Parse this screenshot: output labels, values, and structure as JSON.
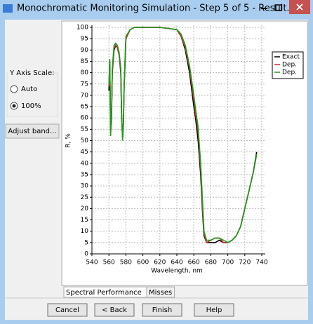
{
  "window": {
    "title": "Monochromatic Monitoring Simulation - Step 5 of 5 - Result..."
  },
  "left_panel": {
    "group_title": "Y Axis Scale:",
    "options": [
      "Auto",
      "100%"
    ],
    "selected": 1,
    "adjust_button": "Adjust band..."
  },
  "chart_data": {
    "type": "line",
    "xlabel": "Wavelength, nm",
    "ylabel": "R, %",
    "x": [
      560,
      561,
      562,
      563,
      564,
      566,
      568,
      570,
      572,
      574,
      575,
      576,
      577,
      578,
      580,
      585,
      590,
      600,
      620,
      640,
      645,
      650,
      655,
      660,
      662,
      665,
      668,
      670,
      672,
      675,
      680,
      685,
      690,
      695,
      700,
      705,
      710,
      715,
      720,
      725,
      730,
      734
    ],
    "series": [
      {
        "name": "Exact",
        "color": "#000000",
        "values": [
          72,
          85,
          55,
          58,
          80,
          90,
          92,
          91,
          88,
          80,
          60,
          52,
          58,
          75,
          95,
          99,
          100,
          100,
          100,
          99,
          96,
          90,
          80,
          65,
          60,
          50,
          35,
          20,
          8,
          5,
          5,
          5,
          6,
          5,
          5,
          6,
          8,
          12,
          20,
          28,
          36,
          45
        ]
      },
      {
        "name": "Dep.",
        "color": "#d62728",
        "values": [
          74,
          85,
          54,
          60,
          81,
          91,
          92,
          91,
          88,
          81,
          61,
          51,
          57,
          75,
          95,
          99,
          100,
          100,
          100,
          99,
          96,
          91,
          82,
          68,
          62,
          54,
          38,
          22,
          9,
          5,
          6,
          7,
          7,
          5,
          5,
          6,
          8,
          12,
          20,
          28,
          36,
          44
        ]
      },
      {
        "name": "Dep.",
        "color": "#1f9a1f",
        "values": [
          75,
          86,
          52,
          60,
          82,
          92,
          93,
          92,
          89,
          82,
          62,
          50,
          56,
          76,
          96,
          99,
          100,
          100,
          100,
          99,
          97,
          92,
          83,
          70,
          64,
          56,
          40,
          25,
          10,
          6,
          6,
          7,
          7,
          6,
          5,
          6,
          8,
          12,
          20,
          28,
          36,
          44
        ]
      }
    ],
    "xlim": [
      540,
      740
    ],
    "ylim": [
      0,
      100
    ],
    "xticks": [
      540,
      560,
      580,
      600,
      620,
      640,
      660,
      680,
      700,
      720,
      740
    ],
    "yticks": [
      0,
      5,
      10,
      15,
      20,
      25,
      30,
      35,
      40,
      45,
      50,
      55,
      60,
      65,
      70,
      75,
      80,
      85,
      90,
      95,
      100
    ],
    "grid": true
  },
  "tabs": [
    "Spectral Performance",
    "Misses"
  ],
  "active_tab": 0,
  "buttons": [
    "Cancel",
    "< Back",
    "Finish",
    "Help"
  ]
}
